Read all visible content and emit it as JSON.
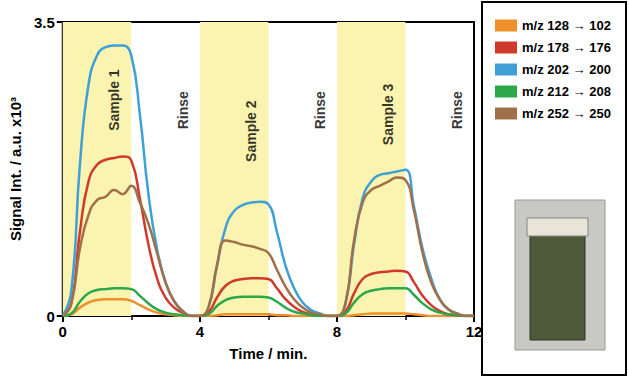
{
  "chart_data": {
    "type": "line",
    "xlabel": "Time / min.",
    "ylabel": "Signal Int. / a.u. x10³",
    "xlim": [
      0,
      12
    ],
    "xticks": [
      0,
      4,
      8,
      12
    ],
    "ylim": [
      0,
      3.5
    ],
    "yticks": [
      0,
      3.5
    ],
    "grid": false,
    "legend": "right",
    "x": [
      0,
      0.25,
      0.5,
      0.75,
      1,
      1.25,
      1.5,
      1.75,
      2,
      2.25,
      2.5,
      2.75,
      3,
      3.25,
      3.5,
      3.75,
      4,
      4.25,
      4.5,
      4.75,
      5,
      5.25,
      5.5,
      5.75,
      6,
      6.25,
      6.5,
      6.75,
      7,
      7.25,
      7.5,
      7.75,
      8,
      8.25,
      8.5,
      8.75,
      9,
      9.25,
      9.5,
      9.75,
      10,
      10.25,
      10.5,
      10.75,
      11,
      11.25,
      11.5,
      11.75,
      12
    ],
    "series": [
      {
        "name": "m/z 128 → 102",
        "color": "#f0902a",
        "values": [
          0,
          0.02,
          0.1,
          0.16,
          0.19,
          0.2,
          0.2,
          0.2,
          0.18,
          0.13,
          0.08,
          0.04,
          0.02,
          0.01,
          0,
          0,
          0,
          0,
          0.01,
          0.02,
          0.02,
          0.02,
          0.02,
          0.02,
          0.02,
          0.01,
          0.01,
          0,
          0,
          0,
          0,
          0,
          0,
          0,
          0.01,
          0.02,
          0.03,
          0.03,
          0.03,
          0.03,
          0.03,
          0.02,
          0.01,
          0,
          0,
          0,
          0,
          0,
          0
        ]
      },
      {
        "name": "m/z 178 → 176",
        "color": "#d03a2b",
        "values": [
          0,
          0.15,
          1.0,
          1.6,
          1.8,
          1.86,
          1.88,
          1.9,
          1.85,
          1.4,
          0.85,
          0.45,
          0.22,
          0.1,
          0.04,
          0,
          0,
          0.04,
          0.22,
          0.36,
          0.42,
          0.44,
          0.45,
          0.45,
          0.44,
          0.33,
          0.2,
          0.11,
          0.05,
          0.02,
          0.01,
          0,
          0,
          0.05,
          0.27,
          0.44,
          0.5,
          0.52,
          0.53,
          0.54,
          0.53,
          0.4,
          0.24,
          0.13,
          0.06,
          0.02,
          0.01,
          0,
          0
        ]
      },
      {
        "name": "m/z 202 → 200",
        "color": "#3fa0d8",
        "values": [
          0,
          0.3,
          1.8,
          2.75,
          3.1,
          3.2,
          3.22,
          3.22,
          3.1,
          2.4,
          1.45,
          0.8,
          0.4,
          0.17,
          0.06,
          0,
          0,
          0.1,
          0.6,
          1.05,
          1.25,
          1.32,
          1.35,
          1.36,
          1.33,
          1.0,
          0.6,
          0.33,
          0.16,
          0.07,
          0.03,
          0,
          0,
          0.15,
          0.85,
          1.4,
          1.6,
          1.68,
          1.7,
          1.72,
          1.74,
          1.3,
          0.8,
          0.45,
          0.2,
          0.08,
          0.03,
          0,
          0
        ]
      },
      {
        "name": "m/z 212 → 208",
        "color": "#2aa84a",
        "values": [
          0,
          0.03,
          0.17,
          0.27,
          0.31,
          0.32,
          0.33,
          0.33,
          0.32,
          0.24,
          0.15,
          0.08,
          0.04,
          0.02,
          0.01,
          0,
          0,
          0.02,
          0.12,
          0.19,
          0.22,
          0.23,
          0.23,
          0.23,
          0.22,
          0.17,
          0.1,
          0.05,
          0.03,
          0.01,
          0,
          0,
          0,
          0.03,
          0.16,
          0.26,
          0.3,
          0.32,
          0.33,
          0.33,
          0.33,
          0.25,
          0.15,
          0.08,
          0.04,
          0.02,
          0.01,
          0,
          0
        ]
      },
      {
        "name": "m/z 252 → 250",
        "color": "#a07048",
        "values": [
          0,
          0.15,
          0.8,
          1.2,
          1.38,
          1.42,
          1.5,
          1.45,
          1.55,
          1.35,
          1.1,
          0.75,
          0.4,
          0.18,
          0.06,
          0,
          0,
          0.1,
          0.6,
          0.9,
          0.88,
          0.85,
          0.83,
          0.8,
          0.75,
          0.55,
          0.35,
          0.2,
          0.1,
          0.04,
          0.02,
          0,
          0,
          0.15,
          0.9,
          1.35,
          1.5,
          1.55,
          1.6,
          1.65,
          1.62,
          1.25,
          0.75,
          0.4,
          0.2,
          0.08,
          0.03,
          0,
          0
        ]
      }
    ],
    "shaded_regions": [
      [
        0,
        2
      ],
      [
        4,
        6
      ],
      [
        8,
        10
      ]
    ],
    "annotations": [
      {
        "text": "Sample 1",
        "x": 1.5,
        "y": 2.57
      },
      {
        "text": "Rinse",
        "x": 3.5,
        "y": 2.45
      },
      {
        "text": "Sample 2",
        "x": 5.5,
        "y": 2.2
      },
      {
        "text": "Rinse",
        "x": 7.5,
        "y": 2.45
      },
      {
        "text": "Sample 3",
        "x": 9.5,
        "y": 2.4
      },
      {
        "text": "Rinse",
        "x": 11.5,
        "y": 2.45
      }
    ]
  }
}
